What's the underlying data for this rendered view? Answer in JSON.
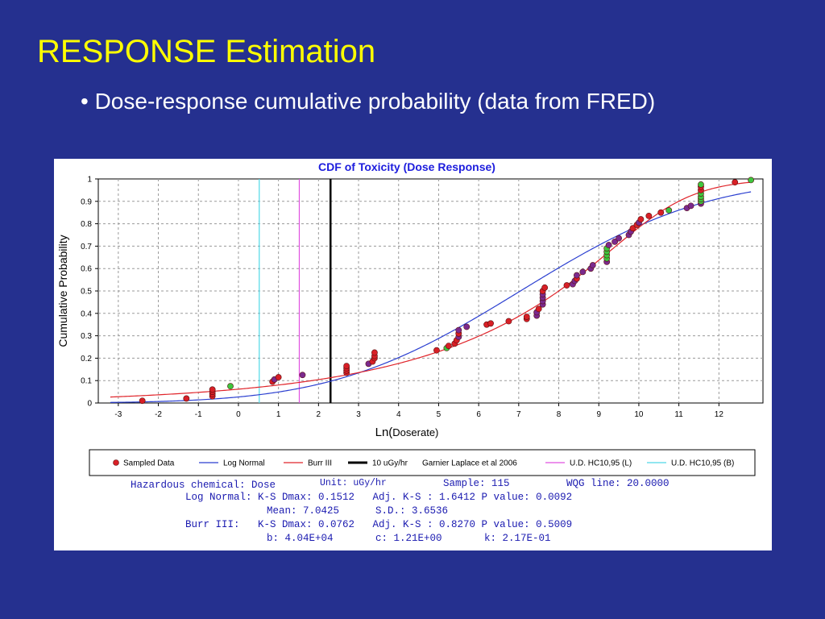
{
  "slide": {
    "title": "RESPONSE Estimation",
    "bullet": "• Dose-response cumulative probability (data from FRED)"
  },
  "chart_data": {
    "type": "scatter",
    "title": "CDF of Toxicity (Dose Response)",
    "xlabel_prefix": "Ln(",
    "xlabel_body": "Doserate)",
    "ylabel": "Cumulative Probability",
    "xlim": [
      -3.5,
      13.1
    ],
    "ylim": [
      0,
      1
    ],
    "x_ticks": [
      -3,
      -2,
      -1,
      0,
      1,
      2,
      3,
      4,
      5,
      6,
      7,
      8,
      9,
      10,
      11,
      12
    ],
    "y_ticks": [
      0,
      0.1,
      0.2,
      0.3,
      0.4,
      0.5,
      0.6,
      0.7,
      0.8,
      0.9,
      1
    ],
    "grid": true,
    "colors": {
      "sampled_red": "#d81f26",
      "sampled_purple": "#7b2a8e",
      "sampled_green": "#3ec63e",
      "log_normal": "#2b3fd0",
      "burr": "#e0242a",
      "threshold": "#000000",
      "hc_l": "#e050e0",
      "hc_b": "#4fd8e8"
    },
    "log_normal": {
      "mean": 7.0425,
      "sd": 3.6536
    },
    "burr_iii": {
      "b": 40400,
      "c": 1.21,
      "k": 0.217
    },
    "vertical_lines": [
      {
        "x": 0.52,
        "series": "U.D. HC10,95 (B)"
      },
      {
        "x": 1.52,
        "series": "U.D. HC10,95 (L)"
      },
      {
        "x": 2.3,
        "series": "10 uGy/hr  Garnier Laplace et al 2006"
      }
    ],
    "points": [
      {
        "x": -2.4,
        "y": 0.01,
        "c": "r"
      },
      {
        "x": -1.3,
        "y": 0.02,
        "c": "r"
      },
      {
        "x": -0.65,
        "y": 0.03,
        "c": "r"
      },
      {
        "x": -0.65,
        "y": 0.04,
        "c": "r"
      },
      {
        "x": -0.65,
        "y": 0.05,
        "c": "r"
      },
      {
        "x": -0.65,
        "y": 0.06,
        "c": "r"
      },
      {
        "x": -0.2,
        "y": 0.075,
        "c": "g"
      },
      {
        "x": 0.85,
        "y": 0.095,
        "c": "r"
      },
      {
        "x": 0.9,
        "y": 0.105,
        "c": "p"
      },
      {
        "x": 1.0,
        "y": 0.115,
        "c": "r"
      },
      {
        "x": 1.6,
        "y": 0.125,
        "c": "p"
      },
      {
        "x": 2.7,
        "y": 0.135,
        "c": "r"
      },
      {
        "x": 2.7,
        "y": 0.145,
        "c": "r"
      },
      {
        "x": 2.7,
        "y": 0.155,
        "c": "r"
      },
      {
        "x": 2.7,
        "y": 0.165,
        "c": "r"
      },
      {
        "x": 3.25,
        "y": 0.175,
        "c": "p"
      },
      {
        "x": 3.35,
        "y": 0.185,
        "c": "r"
      },
      {
        "x": 3.4,
        "y": 0.2,
        "c": "r"
      },
      {
        "x": 3.4,
        "y": 0.21,
        "c": "r"
      },
      {
        "x": 3.4,
        "y": 0.225,
        "c": "r"
      },
      {
        "x": 4.95,
        "y": 0.235,
        "c": "r"
      },
      {
        "x": 5.2,
        "y": 0.245,
        "c": "g"
      },
      {
        "x": 5.25,
        "y": 0.255,
        "c": "r"
      },
      {
        "x": 5.4,
        "y": 0.265,
        "c": "r"
      },
      {
        "x": 5.45,
        "y": 0.28,
        "c": "r"
      },
      {
        "x": 5.5,
        "y": 0.295,
        "c": "p"
      },
      {
        "x": 5.5,
        "y": 0.31,
        "c": "r"
      },
      {
        "x": 5.5,
        "y": 0.325,
        "c": "p"
      },
      {
        "x": 5.7,
        "y": 0.34,
        "c": "p"
      },
      {
        "x": 6.2,
        "y": 0.35,
        "c": "r"
      },
      {
        "x": 6.3,
        "y": 0.355,
        "c": "r"
      },
      {
        "x": 6.75,
        "y": 0.365,
        "c": "r"
      },
      {
        "x": 7.2,
        "y": 0.375,
        "c": "r"
      },
      {
        "x": 7.2,
        "y": 0.385,
        "c": "r"
      },
      {
        "x": 7.45,
        "y": 0.39,
        "c": "p"
      },
      {
        "x": 7.45,
        "y": 0.405,
        "c": "p"
      },
      {
        "x": 7.5,
        "y": 0.42,
        "c": "r"
      },
      {
        "x": 7.6,
        "y": 0.44,
        "c": "p"
      },
      {
        "x": 7.6,
        "y": 0.455,
        "c": "p"
      },
      {
        "x": 7.6,
        "y": 0.47,
        "c": "p"
      },
      {
        "x": 7.6,
        "y": 0.485,
        "c": "p"
      },
      {
        "x": 7.6,
        "y": 0.5,
        "c": "r"
      },
      {
        "x": 7.65,
        "y": 0.515,
        "c": "r"
      },
      {
        "x": 8.2,
        "y": 0.525,
        "c": "r"
      },
      {
        "x": 8.35,
        "y": 0.53,
        "c": "p"
      },
      {
        "x": 8.4,
        "y": 0.545,
        "c": "p"
      },
      {
        "x": 8.45,
        "y": 0.555,
        "c": "r"
      },
      {
        "x": 8.45,
        "y": 0.57,
        "c": "p"
      },
      {
        "x": 8.6,
        "y": 0.585,
        "c": "p"
      },
      {
        "x": 8.8,
        "y": 0.6,
        "c": "p"
      },
      {
        "x": 8.85,
        "y": 0.615,
        "c": "p"
      },
      {
        "x": 9.2,
        "y": 0.63,
        "c": "p"
      },
      {
        "x": 9.2,
        "y": 0.645,
        "c": "g"
      },
      {
        "x": 9.2,
        "y": 0.66,
        "c": "g"
      },
      {
        "x": 9.2,
        "y": 0.675,
        "c": "g"
      },
      {
        "x": 9.2,
        "y": 0.69,
        "c": "g"
      },
      {
        "x": 9.25,
        "y": 0.705,
        "c": "p"
      },
      {
        "x": 9.4,
        "y": 0.72,
        "c": "p"
      },
      {
        "x": 9.5,
        "y": 0.735,
        "c": "p"
      },
      {
        "x": 9.75,
        "y": 0.75,
        "c": "p"
      },
      {
        "x": 9.8,
        "y": 0.765,
        "c": "p"
      },
      {
        "x": 9.85,
        "y": 0.78,
        "c": "r"
      },
      {
        "x": 9.95,
        "y": 0.795,
        "c": "r"
      },
      {
        "x": 10.0,
        "y": 0.805,
        "c": "p"
      },
      {
        "x": 10.05,
        "y": 0.82,
        "c": "r"
      },
      {
        "x": 10.25,
        "y": 0.835,
        "c": "r"
      },
      {
        "x": 10.55,
        "y": 0.85,
        "c": "r"
      },
      {
        "x": 10.75,
        "y": 0.86,
        "c": "g"
      },
      {
        "x": 11.2,
        "y": 0.87,
        "c": "p"
      },
      {
        "x": 11.3,
        "y": 0.88,
        "c": "p"
      },
      {
        "x": 11.55,
        "y": 0.89,
        "c": "p"
      },
      {
        "x": 11.55,
        "y": 0.9,
        "c": "g"
      },
      {
        "x": 11.55,
        "y": 0.91,
        "c": "g"
      },
      {
        "x": 11.55,
        "y": 0.92,
        "c": "g"
      },
      {
        "x": 11.55,
        "y": 0.935,
        "c": "g"
      },
      {
        "x": 11.55,
        "y": 0.95,
        "c": "r"
      },
      {
        "x": 11.55,
        "y": 0.965,
        "c": "r"
      },
      {
        "x": 11.55,
        "y": 0.975,
        "c": "g"
      },
      {
        "x": 12.4,
        "y": 0.985,
        "c": "r"
      },
      {
        "x": 12.8,
        "y": 0.995,
        "c": "g"
      }
    ],
    "legend": [
      {
        "kind": "dot",
        "label": "Sampled Data"
      },
      {
        "kind": "line",
        "color": "#2b3fd0",
        "label": "Log Normal"
      },
      {
        "kind": "line",
        "color": "#e0242a",
        "label": "Burr III"
      },
      {
        "kind": "thick",
        "color": "#000000",
        "label": "10 uGy/hr"
      },
      {
        "kind": "text",
        "label": "Garnier Laplace et al 2006"
      },
      {
        "kind": "line",
        "color": "#e050e0",
        "label": "U.D. HC10,95 (L)"
      },
      {
        "kind": "line",
        "color": "#4fd8e8",
        "label": "U.D. HC10,95 (B)"
      }
    ]
  },
  "stats": {
    "line1_a": "Hazardous chemical: Dose",
    "line1_b": "Unit: uGy/hr",
    "line1_c": "Sample: 115",
    "line1_d": "WQG line: 20.0000",
    "line2": "Log Normal: K-S Dmax: 0.1512   Adj. K-S : 1.6412 P value: 0.0092",
    "line3": "Mean: 7.0425      S.D.: 3.6536",
    "line4": "Burr III:   K-S Dmax: 0.0762   Adj. K-S : 0.8270 P value: 0.5009",
    "line5": "b: 4.04E+04       c: 1.21E+00       k: 2.17E-01"
  }
}
